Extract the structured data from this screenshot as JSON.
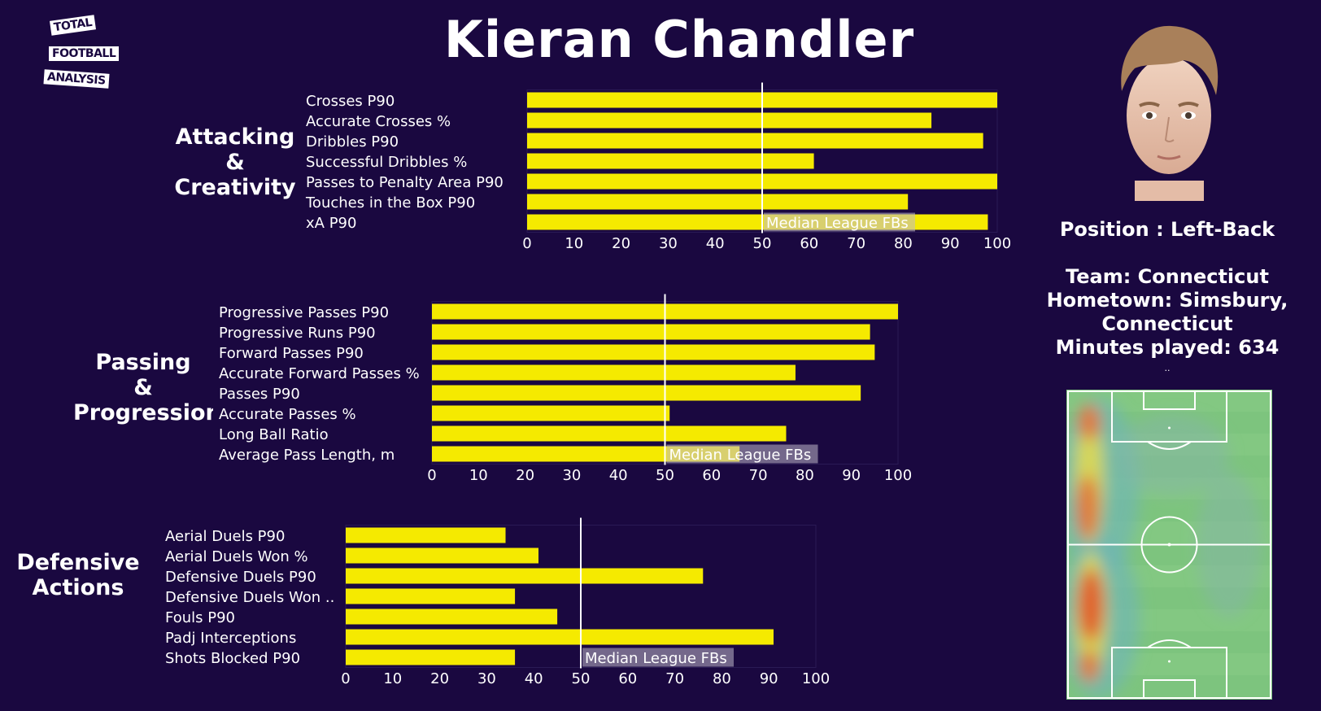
{
  "title": "Kieran Chandler",
  "logo": {
    "lines": [
      "TOTAL",
      "FOOTBALL",
      "ANALYSIS"
    ]
  },
  "info": {
    "position": "Position : Left-Back",
    "team": "Team: Connecticut",
    "hometown_line1": "Hometown: Simsbury,",
    "hometown_line2": "Connecticut",
    "minutes": "Minutes played: 634",
    "dots": ".."
  },
  "sections": [
    {
      "label": [
        "Attacking",
        "&",
        "Creativity"
      ]
    },
    {
      "label": [
        "Passing",
        "&",
        "Progression"
      ]
    },
    {
      "label": [
        "Defensive",
        "Actions"
      ]
    }
  ],
  "colors": {
    "background": "#1a0840",
    "bar": "#f5ea00",
    "median_line": "#ffffff",
    "text": "#ffffff"
  },
  "chart_data": [
    {
      "type": "bar",
      "orientation": "horizontal",
      "categories": [
        "Crosses P90",
        "Accurate Crosses %",
        "Dribbles P90",
        "Successful Dribbles %",
        "Passes to Penalty Area P90",
        "Touches in the Box P90",
        "xA P90"
      ],
      "values": [
        100,
        86,
        97,
        61,
        100,
        81,
        98
      ],
      "xlim": [
        0,
        100
      ],
      "xticks": [
        0,
        10,
        20,
        30,
        40,
        50,
        60,
        70,
        80,
        90,
        100
      ],
      "median": 50,
      "median_label": "Median League FBs"
    },
    {
      "type": "bar",
      "orientation": "horizontal",
      "categories": [
        "Progressive Passes P90",
        "Progressive Runs P90",
        "Forward Passes P90",
        "Accurate Forward Passes %",
        "Passes P90",
        "Accurate Passes %",
        "Long Ball Ratio",
        "Average Pass Length, m"
      ],
      "values": [
        100,
        94,
        95,
        78,
        92,
        51,
        76,
        66
      ],
      "xlim": [
        0,
        100
      ],
      "xticks": [
        0,
        10,
        20,
        30,
        40,
        50,
        60,
        70,
        80,
        90,
        100
      ],
      "median": 50,
      "median_label": "Median League FBs"
    },
    {
      "type": "bar",
      "orientation": "horizontal",
      "categories": [
        "Aerial Duels P90",
        "Aerial Duels Won %",
        "Defensive Duels P90",
        "Defensive Duels Won ..",
        "Fouls P90",
        "Padj Interceptions",
        "Shots Blocked P90"
      ],
      "values": [
        34,
        41,
        76,
        36,
        45,
        91,
        36
      ],
      "xlim": [
        0,
        100
      ],
      "xticks": [
        0,
        10,
        20,
        30,
        40,
        50,
        60,
        70,
        80,
        90,
        100
      ],
      "median": 50,
      "median_label": "Median League FBs"
    }
  ]
}
